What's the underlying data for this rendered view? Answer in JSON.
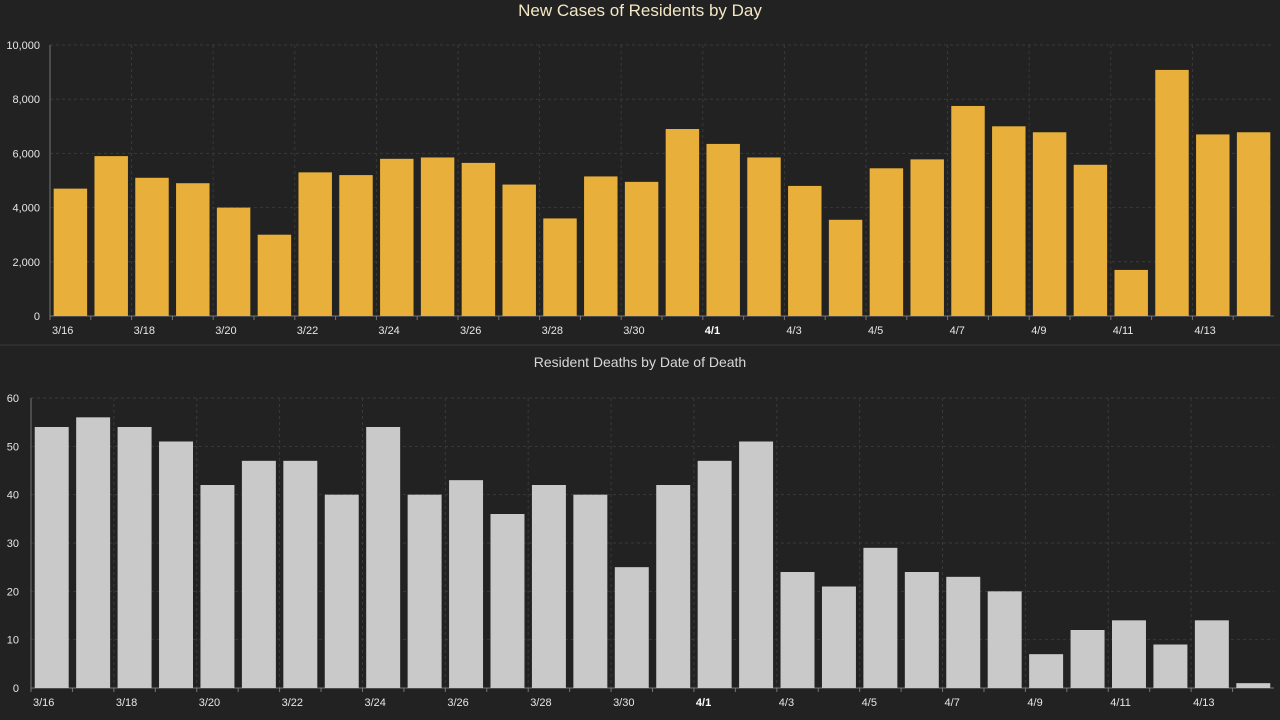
{
  "colors": {
    "background": "#222222",
    "cases_bar": "#e8b03a",
    "deaths_bar": "#c9c9c9",
    "grid": "#3a3a3a",
    "axis": "#777777"
  },
  "chart_data": [
    {
      "type": "bar",
      "title": "New Cases of Residents by Day",
      "xlabel": "",
      "ylabel": "",
      "ylim": [
        0,
        10000
      ],
      "y_ticks": [
        "0",
        "2,000",
        "4,000",
        "6,000",
        "8,000",
        "10,000"
      ],
      "grid": true,
      "categories": [
        "3/16",
        "3/17",
        "3/18",
        "3/19",
        "3/20",
        "3/21",
        "3/22",
        "3/23",
        "3/24",
        "3/25",
        "3/26",
        "3/27",
        "3/28",
        "3/29",
        "3/30",
        "3/31",
        "4/1",
        "4/2",
        "4/3",
        "4/4",
        "4/5",
        "4/6",
        "4/7",
        "4/8",
        "4/9",
        "4/10",
        "4/11",
        "4/12",
        "4/13",
        "4/14"
      ],
      "x_tick_labels": [
        "3/16",
        "",
        "3/18",
        "",
        "3/20",
        "",
        "3/22",
        "",
        "3/24",
        "",
        "3/26",
        "",
        "3/28",
        "",
        "3/30",
        "",
        "4/1",
        "",
        "4/3",
        "",
        "4/5",
        "",
        "4/7",
        "",
        "4/9",
        "",
        "4/11",
        "",
        "4/13",
        ""
      ],
      "values": [
        4700,
        5900,
        5100,
        4900,
        4000,
        3000,
        5300,
        5200,
        5800,
        5850,
        5650,
        4850,
        3600,
        5150,
        4950,
        6900,
        6350,
        5850,
        4800,
        3550,
        5450,
        5780,
        7750,
        7000,
        6780,
        5580,
        1700,
        9080,
        6700,
        6780
      ]
    },
    {
      "type": "bar",
      "title": "Resident Deaths by Date of Death",
      "xlabel": "",
      "ylabel": "",
      "ylim": [
        0,
        60
      ],
      "y_ticks": [
        "0",
        "10",
        "20",
        "30",
        "40",
        "50",
        "60"
      ],
      "grid": true,
      "categories": [
        "3/16",
        "3/17",
        "3/18",
        "3/19",
        "3/20",
        "3/21",
        "3/22",
        "3/23",
        "3/24",
        "3/25",
        "3/26",
        "3/27",
        "3/28",
        "3/29",
        "3/30",
        "3/31",
        "4/1",
        "4/2",
        "4/3",
        "4/4",
        "4/5",
        "4/6",
        "4/7",
        "4/8",
        "4/9",
        "4/10",
        "4/11",
        "4/12",
        "4/13",
        "4/14"
      ],
      "x_tick_labels": [
        "3/16",
        "",
        "3/18",
        "",
        "3/20",
        "",
        "3/22",
        "",
        "3/24",
        "",
        "3/26",
        "",
        "3/28",
        "",
        "3/30",
        "",
        "4/1",
        "",
        "4/3",
        "",
        "4/5",
        "",
        "4/7",
        "",
        "4/9",
        "",
        "4/11",
        "",
        "4/13",
        ""
      ],
      "values": [
        54,
        56,
        54,
        51,
        42,
        47,
        47,
        40,
        54,
        40,
        43,
        36,
        42,
        40,
        25,
        42,
        47,
        51,
        24,
        21,
        29,
        24,
        23,
        20,
        7,
        12,
        14,
        9,
        14,
        1
      ]
    }
  ]
}
